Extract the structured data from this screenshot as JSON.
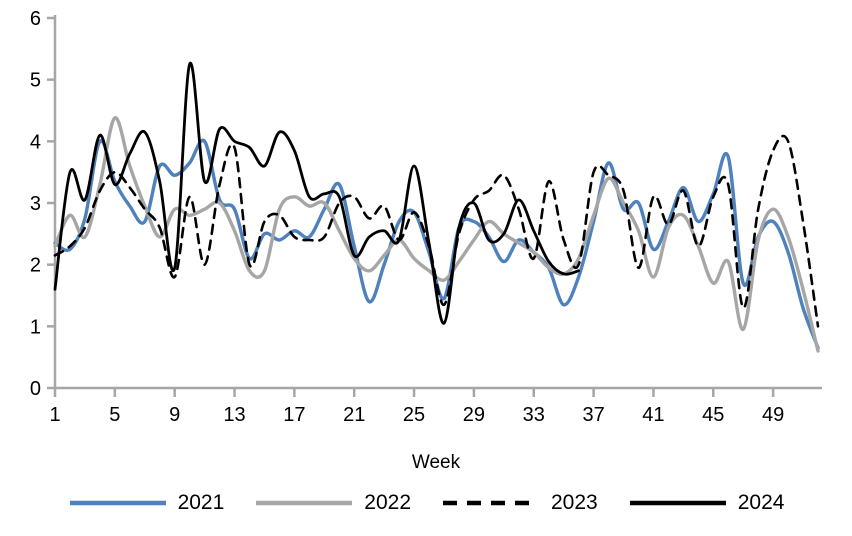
{
  "chart_data": {
    "type": "line",
    "title": "",
    "xlabel": "Week",
    "ylabel": "",
    "x_range": [
      1,
      52
    ],
    "ylim": [
      0,
      6
    ],
    "y_ticks": [
      "0",
      "1",
      "2",
      "3",
      "4",
      "5",
      "6"
    ],
    "x_ticks": [
      "1",
      "5",
      "9",
      "13",
      "17",
      "21",
      "25",
      "29",
      "33",
      "37",
      "41",
      "45",
      "49"
    ],
    "x_tick_weeks": [
      1,
      5,
      9,
      13,
      17,
      21,
      25,
      29,
      33,
      37,
      41,
      45,
      49
    ],
    "grid": false,
    "legend_position": "bottom-center",
    "axis_color": "#a6a6a6",
    "text_color": "#000000",
    "smoothing": true,
    "series": [
      {
        "name": "2021",
        "color": "#4f81bd",
        "style": "solid",
        "width": 3.4,
        "values": [
          2.35,
          2.25,
          2.75,
          4.0,
          3.35,
          2.95,
          2.7,
          3.6,
          3.45,
          3.65,
          4.0,
          3.05,
          2.9,
          2.1,
          2.5,
          2.4,
          2.55,
          2.45,
          2.9,
          3.3,
          2.3,
          1.4,
          2.0,
          2.7,
          2.85,
          2.2,
          1.45,
          2.6,
          2.7,
          2.45,
          2.05,
          2.4,
          2.2,
          1.95,
          1.35,
          1.8,
          2.7,
          3.65,
          2.9,
          3.0,
          2.25,
          2.7,
          3.25,
          2.7,
          3.15,
          3.75,
          1.7,
          2.45,
          2.7,
          2.2,
          1.3,
          0.65
        ]
      },
      {
        "name": "2022",
        "color": "#a6a6a6",
        "style": "solid",
        "width": 3.4,
        "values": [
          2.3,
          2.8,
          2.45,
          3.3,
          4.38,
          3.6,
          2.95,
          2.45,
          2.9,
          2.8,
          2.9,
          3.0,
          2.55,
          1.9,
          1.9,
          2.9,
          3.1,
          2.95,
          3.0,
          2.55,
          2.1,
          1.9,
          2.15,
          2.4,
          2.1,
          1.9,
          1.75,
          2.05,
          2.4,
          2.7,
          2.5,
          2.35,
          2.2,
          1.95,
          1.85,
          2.1,
          2.8,
          3.4,
          3.0,
          2.55,
          1.8,
          2.6,
          2.8,
          2.3,
          1.7,
          2.05,
          0.95,
          2.4,
          2.9,
          2.45,
          1.6,
          0.6
        ]
      },
      {
        "name": "2023",
        "color": "#000000",
        "style": "dashed",
        "width": 2.6,
        "values": [
          2.15,
          2.3,
          2.6,
          3.2,
          3.5,
          3.25,
          2.9,
          2.6,
          1.8,
          3.1,
          2.0,
          3.3,
          3.9,
          2.0,
          2.7,
          2.8,
          2.45,
          2.4,
          2.45,
          3.0,
          3.1,
          2.75,
          2.95,
          2.4,
          2.85,
          2.3,
          1.35,
          2.5,
          3.05,
          3.2,
          3.45,
          2.9,
          2.1,
          3.35,
          2.4,
          2.0,
          3.5,
          3.45,
          3.2,
          1.95,
          3.1,
          2.65,
          3.2,
          2.3,
          3.1,
          3.3,
          1.3,
          2.9,
          3.85,
          4.0,
          2.7,
          1.0
        ]
      },
      {
        "name": "2024",
        "color": "#000000",
        "style": "solid",
        "width": 2.8,
        "values": [
          1.6,
          3.5,
          3.05,
          4.1,
          3.3,
          3.8,
          4.15,
          3.35,
          1.95,
          5.25,
          3.35,
          4.2,
          4.0,
          3.9,
          3.6,
          4.15,
          3.85,
          3.1,
          3.15,
          3.1,
          2.15,
          2.45,
          2.55,
          2.4,
          3.6,
          2.35,
          1.05,
          2.6,
          3.0,
          2.4,
          2.5,
          3.05,
          2.55,
          2.05,
          1.85,
          1.9
        ]
      }
    ]
  }
}
